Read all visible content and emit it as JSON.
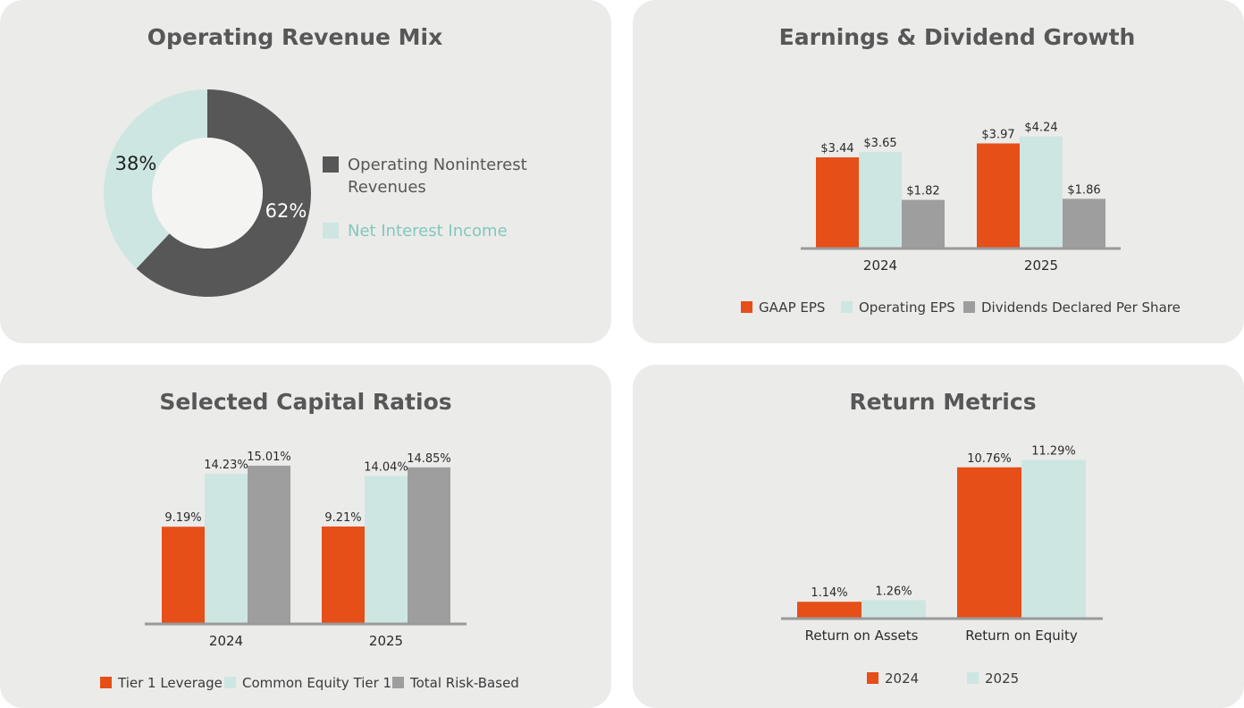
{
  "colors": {
    "orange": "#e64f18",
    "lightteal": "#cde6e2",
    "gray": "#9e9e9e",
    "darkgray": "#575757",
    "tealtext": "#82c8bb",
    "axis": "#9a9a9a"
  },
  "chart_data": [
    {
      "id": "revenue_mix",
      "type": "pie",
      "title": "Operating Revenue Mix",
      "slices": [
        {
          "label": "Operating Noninterest Revenues",
          "value": 62,
          "display": "62%",
          "color": "#575757"
        },
        {
          "label": "Net Interest Income",
          "value": 38,
          "display": "38%",
          "color": "#cde6e2"
        }
      ],
      "legend": {
        "label_line1": "Operating Noninterest",
        "label_line2": "Revenues",
        "label_2": "Net Interest Income"
      }
    },
    {
      "id": "earnings_dividend",
      "type": "bar",
      "title": "Earnings & Dividend Growth",
      "categories": [
        "2024",
        "2025"
      ],
      "series": [
        {
          "name": "GAAP EPS",
          "values": [
            3.44,
            3.97
          ],
          "labels": [
            "$3.44",
            "$3.97"
          ],
          "color": "#e64f18"
        },
        {
          "name": "Operating EPS",
          "values": [
            3.65,
            4.24
          ],
          "labels": [
            "$3.65",
            "$4.24"
          ],
          "color": "#cde6e2"
        },
        {
          "name": "Dividends Declared Per Share",
          "values": [
            1.82,
            1.86
          ],
          "labels": [
            "$1.82",
            "$1.86"
          ],
          "color": "#9e9e9e"
        }
      ],
      "ylim": [
        0,
        6.2
      ]
    },
    {
      "id": "capital_ratios",
      "type": "bar",
      "title": "Selected Capital Ratios",
      "categories": [
        "2024",
        "2025"
      ],
      "series": [
        {
          "name": "Tier 1 Leverage",
          "values": [
            9.19,
            9.21
          ],
          "labels": [
            "9.19%",
            "9.21%"
          ],
          "color": "#e64f18"
        },
        {
          "name": "Common Equity Tier 1",
          "values": [
            14.23,
            14.04
          ],
          "labels": [
            "14.23%",
            "14.04%"
          ],
          "color": "#cde6e2"
        },
        {
          "name": "Total Risk-Based",
          "values": [
            15.01,
            14.85
          ],
          "labels": [
            "15.01%",
            "14.85%"
          ],
          "color": "#9e9e9e"
        }
      ],
      "ylim": [
        0,
        18.5
      ]
    },
    {
      "id": "return_metrics",
      "type": "bar",
      "title": "Return Metrics",
      "categories": [
        "Return on Assets",
        "Return on Equity"
      ],
      "series": [
        {
          "name": "2024",
          "values": [
            1.14,
            10.76
          ],
          "labels": [
            "1.14%",
            "10.76%"
          ],
          "color": "#e64f18"
        },
        {
          "name": "2025",
          "values": [
            1.26,
            11.29
          ],
          "labels": [
            "1.26%",
            "11.29%"
          ],
          "color": "#cde6e2"
        }
      ],
      "ylim": [
        0,
        12.6
      ]
    }
  ]
}
